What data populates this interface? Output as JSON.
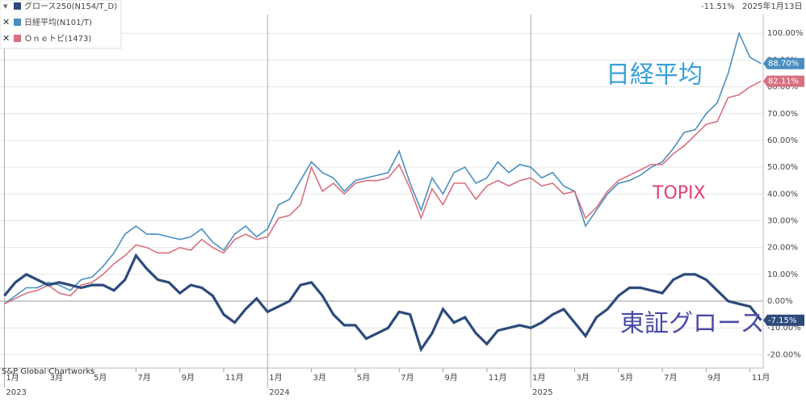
{
  "chart_data": {
    "type": "line",
    "legend": [
      {
        "name": "グロース250(N154/T_D)",
        "color": "#2d4a7a"
      },
      {
        "name": "日経平均(N101/T)",
        "color": "#4a8fc0"
      },
      {
        "name": "Ｏｎｅトピ(1473)",
        "color": "#d9707f"
      }
    ],
    "header_value": "-11.51%",
    "header_date": "2025年1月13日",
    "source": "S&P Global Chartworks",
    "annotations": [
      {
        "text": "日経平均",
        "color": "#3aa0d8"
      },
      {
        "text": "TOPIX",
        "color": "#e0407a"
      },
      {
        "text": "東証グロース",
        "color": "#4a4aa8"
      }
    ],
    "x": [
      0,
      0.5,
      1,
      1.5,
      2,
      2.5,
      3,
      3.5,
      4,
      4.5,
      5,
      5.5,
      6,
      6.5,
      7,
      7.5,
      8,
      8.5,
      9,
      9.5,
      10,
      10.5,
      11,
      11.5,
      12,
      12.5,
      13,
      13.5,
      14,
      14.5,
      15,
      15.5,
      16,
      16.5,
      17,
      17.5,
      18,
      18.5,
      19,
      19.5,
      20,
      20.5,
      21,
      21.5,
      22,
      22.5,
      23,
      23.5,
      24,
      24.5,
      25,
      25.5,
      26,
      26.5,
      27,
      27.5,
      28,
      28.5,
      29,
      29.5,
      30,
      30.5,
      31,
      31.5,
      32,
      32.5,
      33,
      33.5,
      34,
      34.5
    ],
    "xlim": [
      -0.2,
      34.6
    ],
    "xticks": [
      {
        "value": 0,
        "label": "1月"
      },
      {
        "value": 2,
        "label": "3月"
      },
      {
        "value": 4,
        "label": "5月"
      },
      {
        "value": 6,
        "label": "7月"
      },
      {
        "value": 8,
        "label": "9月"
      },
      {
        "value": 10,
        "label": "11月"
      },
      {
        "value": 12,
        "label": "1月"
      },
      {
        "value": 14,
        "label": "3月"
      },
      {
        "value": 16,
        "label": "5月"
      },
      {
        "value": 18,
        "label": "7月"
      },
      {
        "value": 20,
        "label": "9月"
      },
      {
        "value": 22,
        "label": "11月"
      },
      {
        "value": 24,
        "label": "1月"
      },
      {
        "value": 26,
        "label": "3月"
      },
      {
        "value": 28,
        "label": "5月"
      },
      {
        "value": 30,
        "label": "7月"
      },
      {
        "value": 32,
        "label": "9月"
      },
      {
        "value": 34,
        "label": "11月"
      }
    ],
    "year_ticks": [
      {
        "value": 0,
        "label": "2023"
      },
      {
        "value": 12,
        "label": "2024"
      },
      {
        "value": 24,
        "label": "2025"
      }
    ],
    "ylim": [
      -25,
      107
    ],
    "yticks": [
      {
        "value": -20,
        "label": "-20.00%"
      },
      {
        "value": -10,
        "label": "-10.00%"
      },
      {
        "value": 0,
        "label": "0.00%"
      },
      {
        "value": 10,
        "label": "10.00%"
      },
      {
        "value": 20,
        "label": "20.00%"
      },
      {
        "value": 30,
        "label": "30.00%"
      },
      {
        "value": 40,
        "label": "40.00%"
      },
      {
        "value": 50,
        "label": "50.00%"
      },
      {
        "value": 60,
        "label": "60.00%"
      },
      {
        "value": 70,
        "label": "70.00%"
      },
      {
        "value": 80,
        "label": "80.00%"
      },
      {
        "value": 90,
        "label": "90.00%"
      },
      {
        "value": 100,
        "label": "100.00%"
      }
    ],
    "grid": true,
    "series": [
      {
        "name": "日経平均",
        "color": "#4a8fc0",
        "last_label": "88.70%",
        "values": [
          -1,
          2,
          5,
          5,
          7,
          6,
          4,
          8,
          9,
          13,
          18,
          25,
          28,
          25,
          25,
          24,
          23,
          24,
          27,
          22,
          19,
          25,
          28,
          24,
          27,
          36,
          38,
          45,
          52,
          48,
          46,
          41,
          45,
          46,
          47,
          48,
          56,
          44,
          34,
          46,
          40,
          48,
          50,
          44,
          46,
          52,
          48,
          51,
          50,
          46,
          48,
          43,
          41,
          28,
          34,
          40,
          44,
          45,
          47,
          50,
          52,
          57,
          63,
          64,
          70,
          74,
          85,
          100,
          91,
          88.7
        ]
      },
      {
        "name": "TOPIX",
        "color": "#d9707f",
        "last_label": "82.11%",
        "values": [
          -1,
          1,
          3,
          4,
          6,
          3,
          2,
          6,
          7,
          10,
          14,
          17,
          21,
          20,
          18,
          18,
          20,
          19,
          23,
          20,
          18,
          23,
          25,
          23,
          24,
          31,
          32,
          36,
          50,
          41,
          44,
          40,
          44,
          45,
          45,
          46,
          51,
          42,
          31,
          42,
          36,
          44,
          44,
          38,
          43,
          45,
          43,
          45,
          46,
          43,
          44,
          40,
          41,
          31,
          35,
          41,
          45,
          47,
          49,
          51,
          51,
          55,
          58,
          62,
          66,
          67,
          76,
          77,
          80,
          82.11
        ]
      },
      {
        "name": "東証グロース",
        "color": "#2d4a7a",
        "last_label": "-7.15%",
        "values": [
          2,
          7,
          10,
          8,
          6,
          7,
          6,
          5,
          6,
          6,
          4,
          8,
          17,
          12,
          8,
          7,
          3,
          6,
          5,
          2,
          -5,
          -8,
          -3,
          1,
          -4,
          -2,
          0,
          6,
          7,
          2,
          -5,
          -9,
          -9,
          -14,
          -12,
          -10,
          -4,
          -5,
          -18,
          -12,
          -3,
          -8,
          -6,
          -12,
          -16,
          -11,
          -10,
          -9,
          -10,
          -8,
          -5,
          -3,
          -8,
          -13,
          -6,
          -3,
          2,
          5,
          5,
          4,
          3,
          8,
          10,
          10,
          8,
          4,
          0,
          -1,
          -2,
          -7.15
        ]
      }
    ]
  }
}
